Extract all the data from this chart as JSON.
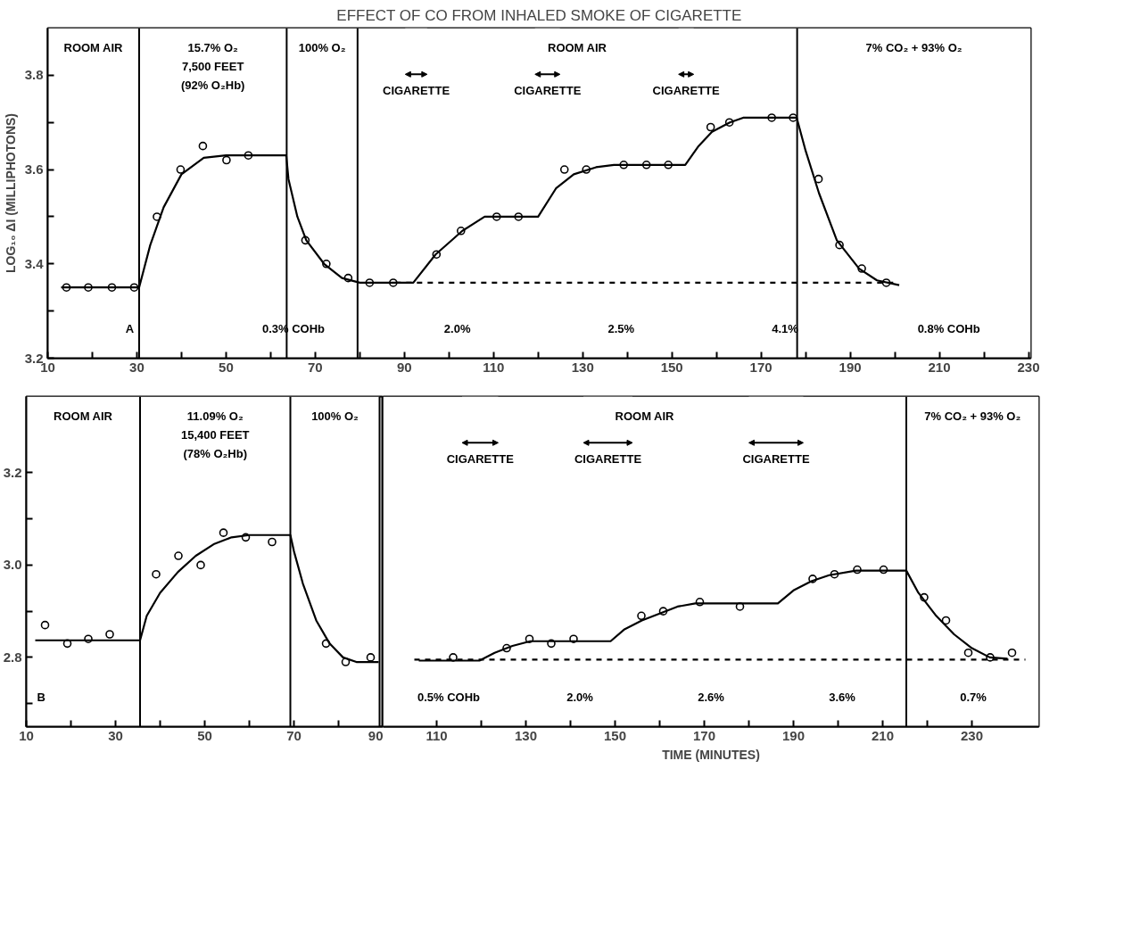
{
  "chart_data": [
    {
      "type": "scatter",
      "title": "EFFECT OF CO FROM INHALED SMOKE OF CIGARETTE",
      "ylabel": "LOG₁₀ ΔI (MILLIPHOTONS)",
      "xlim": [
        10,
        230.5
      ],
      "ylim": [
        3.2,
        3.9
      ],
      "xticks": [
        10,
        {
          "value": 20,
          "label": null
        },
        30,
        {
          "value": 40,
          "label": null
        },
        50,
        {
          "value": 60,
          "label": null
        },
        70,
        {
          "value": 80,
          "label": null
        },
        90,
        {
          "value": 100,
          "label": null
        },
        110,
        {
          "value": 120,
          "label": null
        },
        130,
        {
          "value": 140,
          "label": null
        },
        150,
        {
          "value": 160,
          "label": null
        },
        170,
        {
          "value": 180,
          "label": null
        },
        190,
        {
          "value": 200,
          "label": null
        },
        210,
        {
          "value": 220,
          "label": null
        },
        230
      ],
      "yticks": [
        3.2,
        {
          "value": 3.3,
          "label": null
        },
        3.4,
        {
          "value": 3.5,
          "label": null
        },
        3.6,
        {
          "value": 3.7,
          "label": null
        },
        3.8
      ],
      "grid": false,
      "series": [
        {
          "marker": "circle",
          "color": "#000000",
          "x": [
            14.2,
            19.1,
            24.4,
            29.4,
            34.5,
            39.8,
            44.8,
            50.1,
            55.0,
            67.8,
            72.5,
            77.4,
            82.2,
            87.5,
            97.2,
            102.7,
            110.7,
            115.6,
            125.9,
            130.8,
            139.2,
            144.3,
            149.2,
            158.7,
            162.9,
            172.4,
            177.2,
            182.9,
            187.6,
            192.6,
            198.1
          ],
          "values": [
            3.35,
            3.35,
            3.35,
            3.35,
            3.5,
            3.6,
            3.65,
            3.62,
            3.63,
            3.45,
            3.4,
            3.37,
            3.36,
            3.36,
            3.42,
            3.47,
            3.5,
            3.5,
            3.6,
            3.6,
            3.61,
            3.61,
            3.61,
            3.69,
            3.7,
            3.71,
            3.71,
            3.58,
            3.44,
            3.39,
            3.36
          ]
        },
        {
          "type": "line",
          "line_style": "solid",
          "color": "#000000",
          "x": [
            13,
            30.5,
            33,
            36,
            40,
            45,
            50,
            63.5,
            64,
            66,
            68,
            72,
            76,
            80,
            92,
            97,
            103,
            108,
            112,
            120,
            124,
            128,
            133,
            137,
            153,
            156,
            159,
            163,
            166,
            178,
            180,
            183,
            187,
            192,
            196,
            201
          ],
          "values": [
            3.35,
            3.35,
            3.44,
            3.52,
            3.59,
            3.625,
            3.63,
            3.63,
            3.58,
            3.5,
            3.45,
            3.4,
            3.37,
            3.36,
            3.36,
            3.42,
            3.47,
            3.5,
            3.5,
            3.5,
            3.56,
            3.59,
            3.605,
            3.61,
            3.61,
            3.65,
            3.68,
            3.7,
            3.71,
            3.71,
            3.64,
            3.55,
            3.45,
            3.39,
            3.365,
            3.355
          ]
        },
        {
          "type": "line",
          "line_style": "dashed",
          "color": "#000000",
          "x": [
            88,
            200
          ],
          "values": [
            3.36,
            3.36
          ]
        }
      ],
      "ref_lines": [
        {
          "axis": "x",
          "value": 30.5,
          "label": null,
          "color": "#000000"
        },
        {
          "axis": "x",
          "value": 63.6,
          "label": null,
          "color": "#000000"
        },
        {
          "axis": "x",
          "value": 79.5,
          "label": null,
          "color": "#000000"
        },
        {
          "axis": "x",
          "value": 178.1,
          "label": null,
          "color": "#000000"
        }
      ],
      "bands": [
        {
          "axis": "x",
          "from": 10,
          "to": 30.5,
          "label": "ROOM AIR",
          "color": "#ffffff"
        },
        {
          "axis": "x",
          "from": 30.5,
          "to": 63.6,
          "label": "15.7% O₂\n7,500 FEET\n(92% O₂Hb)",
          "color": "#ffffff"
        },
        {
          "axis": "x",
          "from": 63.6,
          "to": 79.5,
          "label": "100% O₂",
          "color": "#ffffff"
        },
        {
          "axis": "x",
          "from": 79.5,
          "to": 178.1,
          "label": "ROOM AIR",
          "color": "#ffffff"
        },
        {
          "axis": "x",
          "from": 178.1,
          "to": 230.5,
          "label": "7% CO₂ + 93% O₂",
          "color": "#ffffff"
        },
        {
          "axis": "x",
          "from": 90.2,
          "to": 95.1,
          "label": "CIGARETTE",
          "color": "#ffffff"
        },
        {
          "axis": "x",
          "from": 119.3,
          "to": 124.9,
          "label": "CIGARETTE",
          "color": "#ffffff"
        },
        {
          "axis": "x",
          "from": 151.5,
          "to": 154.9,
          "label": "CIGARETTE",
          "color": "#ffffff"
        }
      ],
      "annotations": [
        "A",
        "0.3% COHb",
        "2.0%",
        "2.5%",
        "4.1%",
        "0.8% COHb"
      ]
    },
    {
      "type": "scatter",
      "xlim": [
        10,
        90
      ],
      "ylim": [
        2.65,
        3.365
      ],
      "xticks": [
        10,
        {
          "value": 20,
          "label": null
        },
        30,
        {
          "value": 40,
          "label": null
        },
        50,
        {
          "value": 60,
          "label": null
        },
        70,
        {
          "value": 80,
          "label": null
        },
        90
      ],
      "yticks": [
        {
          "value": 2.7,
          "label": null
        },
        {
          "value": 2.8,
          "label": "2.8"
        },
        {
          "value": 2.9,
          "label": null
        },
        {
          "value": 3.0,
          "label": "3.0"
        },
        {
          "value": 3.1,
          "label": null
        },
        {
          "value": 3.2,
          "label": "3.2"
        }
      ],
      "grid": false,
      "series": [
        {
          "marker": "circle",
          "color": "#000000",
          "x": [
            14.2,
            19.2,
            23.9,
            28.7,
            39.1,
            44.1,
            49.1,
            54.2,
            59.2,
            65.1,
            77.2,
            81.6,
            87.2
          ],
          "values": [
            2.87,
            2.83,
            2.84,
            2.85,
            2.98,
            3.02,
            3.0,
            3.07,
            3.06,
            3.05,
            2.83,
            2.79,
            2.8
          ]
        },
        {
          "type": "line",
          "line_style": "solid",
          "color": "#000000",
          "x": [
            12,
            35.5,
            37,
            40,
            44,
            48,
            52,
            56,
            60,
            69.2,
            70,
            72,
            75,
            78,
            81,
            84,
            89
          ],
          "values": [
            2.837,
            2.837,
            2.89,
            2.94,
            2.985,
            3.02,
            3.045,
            3.06,
            3.065,
            3.065,
            3.03,
            2.96,
            2.88,
            2.83,
            2.8,
            2.79,
            2.79
          ]
        }
      ],
      "ref_lines": [
        {
          "axis": "x",
          "value": 35.5,
          "label": null,
          "color": "#000000"
        },
        {
          "axis": "x",
          "value": 69.2,
          "label": null,
          "color": "#000000"
        },
        {
          "axis": "x",
          "value": 89.2,
          "label": null,
          "color": "#000000"
        }
      ],
      "bands": [
        {
          "axis": "x",
          "from": 10,
          "to": 35.5,
          "label": "ROOM AIR",
          "color": "#ffffff"
        },
        {
          "axis": "x",
          "from": 35.5,
          "to": 69.2,
          "label": "11.09% O₂\n15,400 FEET\n(78% O₂Hb)",
          "color": "#ffffff"
        },
        {
          "axis": "x",
          "from": 69.2,
          "to": 89.2,
          "label": "100% O₂",
          "color": "#ffffff"
        }
      ],
      "annotations": [
        "B"
      ]
    },
    {
      "type": "scatter",
      "xlabel": "TIME (MINUTES)",
      "xlim": [
        98,
        245
      ],
      "ylim": [
        2.65,
        3.365
      ],
      "tick_labels": "x",
      "xticks": [
        110,
        {
          "value": 120,
          "label": null
        },
        130,
        {
          "value": 140,
          "label": null
        },
        150,
        {
          "value": 160,
          "label": null
        },
        170,
        {
          "value": 180,
          "label": null
        },
        190,
        {
          "value": 200,
          "label": null
        },
        210,
        {
          "value": 220,
          "label": null
        },
        230
      ],
      "grid": false,
      "series": [
        {
          "marker": "circle",
          "color": "#000000",
          "x": [
            113.7,
            125.7,
            130.8,
            135.7,
            140.7,
            155.9,
            160.8,
            169.0,
            178.0,
            194.3,
            199.2,
            204.3,
            210.2,
            219.3,
            224.2,
            229.2,
            234.1,
            239.0
          ],
          "values": [
            2.8,
            2.82,
            2.84,
            2.83,
            2.84,
            2.89,
            2.9,
            2.92,
            2.91,
            2.97,
            2.98,
            2.99,
            2.99,
            2.93,
            2.88,
            2.81,
            2.8,
            2.81
          ]
        },
        {
          "type": "line",
          "line_style": "solid",
          "color": "#000000",
          "x": [
            106,
            112,
            119.6,
            123,
            127,
            131,
            149,
            152,
            156,
            160,
            164,
            168,
            186.5,
            190,
            194,
            198,
            204,
            215.3,
            218,
            222,
            226,
            230,
            234,
            238
          ],
          "values": [
            2.793,
            2.793,
            2.793,
            2.81,
            2.825,
            2.835,
            2.835,
            2.86,
            2.88,
            2.895,
            2.91,
            2.917,
            2.917,
            2.945,
            2.965,
            2.978,
            2.988,
            2.988,
            2.94,
            2.89,
            2.85,
            2.82,
            2.8,
            2.797
          ]
        },
        {
          "type": "line",
          "line_style": "dashed",
          "color": "#000000",
          "x": [
            105,
            242
          ],
          "values": [
            2.795,
            2.795
          ]
        }
      ],
      "ref_lines": [
        {
          "axis": "x",
          "value": 215.3,
          "label": null,
          "color": "#000000"
        }
      ],
      "annotations": [
        "0.5% COHb",
        "2.0%",
        "2.6%",
        "3.6%",
        "0.7%"
      ],
      "bands": [
        {
          "axis": "x",
          "from": 98,
          "to": 215.3,
          "label": "ROOM AIR",
          "color": "#ffffff"
        },
        {
          "axis": "x",
          "from": 215.3,
          "to": 245,
          "label": "7% CO₂ + 93% O₂",
          "color": "#ffffff"
        },
        {
          "axis": "x",
          "from": 115.7,
          "to": 123.8,
          "label": "CIGARETTE",
          "color": "#ffffff"
        },
        {
          "axis": "x",
          "from": 142.9,
          "to": 153.9,
          "label": "CIGARETTE",
          "color": "#ffffff"
        },
        {
          "axis": "x",
          "from": 180.0,
          "to": 192.2,
          "label": "CIGARETTE",
          "color": "#ffffff"
        }
      ]
    }
  ]
}
